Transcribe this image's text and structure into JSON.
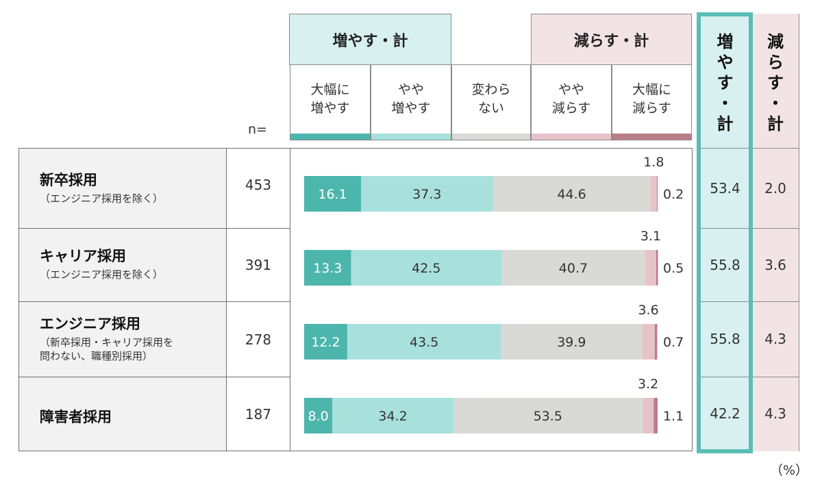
{
  "header": {
    "increase_total_label": "増やす・計",
    "decrease_total_label": "減らす・計",
    "n_label": "n=",
    "categories": [
      {
        "label": "大幅に\n増やす",
        "color": "#4db6ac"
      },
      {
        "label": "やや\n増やす",
        "color": "#a8e0dc"
      },
      {
        "label": "変わら\nない",
        "color": "#d9d9d6"
      },
      {
        "label": "やや\n減らす",
        "color": "#e6c3c8"
      },
      {
        "label": "大幅に\n減らす",
        "color": "#b87e87"
      }
    ]
  },
  "totals_header": {
    "increase": "増\nや\nす\n・\n計",
    "decrease": "減\nら\nす\n・\n計"
  },
  "unit_label": "（%）",
  "rows": [
    {
      "title": "新卒採用",
      "subtitle": "（エンジニア採用を除く）",
      "n": "453",
      "inc_total": "53.4",
      "dec_total": "2.0"
    },
    {
      "title": "キャリア採用",
      "subtitle": "（エンジニア採用を除く）",
      "n": "391",
      "inc_total": "55.8",
      "dec_total": "3.6"
    },
    {
      "title": "エンジニア採用",
      "subtitle": "（新卒採用・キャリア採用を\n問わない、職種別採用）",
      "n": "278",
      "inc_total": "55.8",
      "dec_total": "4.3"
    },
    {
      "title": "障害者採用",
      "subtitle": "",
      "n": "187",
      "inc_total": "42.2",
      "dec_total": "4.3"
    }
  ],
  "chart_data": {
    "type": "bar",
    "orientation": "horizontal",
    "stacked": true,
    "xlim": [
      0,
      100
    ],
    "categories": [
      "新卒採用",
      "キャリア採用",
      "エンジニア採用",
      "障害者採用"
    ],
    "series": [
      {
        "name": "大幅に増やす",
        "values": [
          16.1,
          13.3,
          12.2,
          8.0
        ],
        "color": "#4db6ac",
        "label_color": "#ffffff"
      },
      {
        "name": "やや増やす",
        "values": [
          37.3,
          42.5,
          43.5,
          34.2
        ],
        "color": "#a8e0dc",
        "label_color": "#333333"
      },
      {
        "name": "変わらない",
        "values": [
          44.6,
          40.7,
          39.9,
          53.5
        ],
        "color": "#d9d9d6",
        "label_color": "#333333"
      },
      {
        "name": "やや減らす",
        "values": [
          1.8,
          3.1,
          3.6,
          3.2
        ],
        "color": "#e6c3c8",
        "label_color": "#333333"
      },
      {
        "name": "大幅に減らす",
        "values": [
          0.2,
          0.5,
          0.7,
          1.1
        ],
        "color": "#b87e87",
        "label_color": "#333333"
      }
    ],
    "label_strings": [
      [
        "16.1",
        "37.3",
        "44.6",
        "1.8",
        "0.2"
      ],
      [
        "13.3",
        "42.5",
        "40.7",
        "3.1",
        "0.5"
      ],
      [
        "12.2",
        "43.5",
        "39.9",
        "3.6",
        "0.7"
      ],
      [
        "8.0",
        "34.2",
        "53.5",
        "3.2",
        "1.1"
      ]
    ]
  }
}
